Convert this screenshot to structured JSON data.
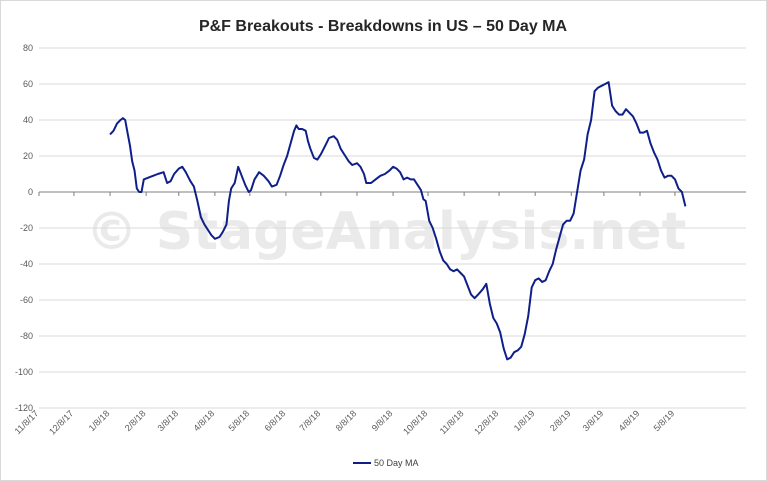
{
  "chart_data": {
    "type": "line",
    "title": "P&F Breakouts - Breakdowns in US – 50 Day MA",
    "watermark": "© StageAnalysis.net",
    "xlabel": "",
    "ylabel": "",
    "xlim": [
      "2017-11-08",
      "2019-07-08"
    ],
    "ylim": [
      -120,
      80
    ],
    "y_ticks": [
      80,
      60,
      40,
      20,
      0,
      -20,
      -40,
      -60,
      -80,
      -100,
      -120
    ],
    "x_ticks": [
      {
        "date": "2017-11-08",
        "label": "11/8/17"
      },
      {
        "date": "2017-12-08",
        "label": "12/8/17"
      },
      {
        "date": "2018-01-08",
        "label": "1/8/18"
      },
      {
        "date": "2018-02-08",
        "label": "2/8/18"
      },
      {
        "date": "2018-03-08",
        "label": "3/8/18"
      },
      {
        "date": "2018-04-08",
        "label": "4/8/18"
      },
      {
        "date": "2018-05-08",
        "label": "5/8/18"
      },
      {
        "date": "2018-06-08",
        "label": "6/8/18"
      },
      {
        "date": "2018-07-08",
        "label": "7/8/18"
      },
      {
        "date": "2018-08-08",
        "label": "8/8/18"
      },
      {
        "date": "2018-09-08",
        "label": "9/8/18"
      },
      {
        "date": "2018-10-08",
        "label": "10/8/18"
      },
      {
        "date": "2018-11-08",
        "label": "11/8/18"
      },
      {
        "date": "2018-12-08",
        "label": "12/8/18"
      },
      {
        "date": "2019-01-08",
        "label": "1/8/19"
      },
      {
        "date": "2019-02-08",
        "label": "2/8/19"
      },
      {
        "date": "2019-03-08",
        "label": "3/8/19"
      },
      {
        "date": "2019-04-08",
        "label": "4/8/19"
      },
      {
        "date": "2019-05-08",
        "label": "5/8/19"
      }
    ],
    "grid": {
      "horizontal": true,
      "vertical": false
    },
    "legend": "bottom",
    "series": [
      {
        "name": "50 Day MA",
        "color": "#0f1f8a",
        "points": [
          [
            "2018-01-08",
            32
          ],
          [
            "2018-01-11",
            34
          ],
          [
            "2018-01-14",
            38
          ],
          [
            "2018-01-17",
            40
          ],
          [
            "2018-01-19",
            41
          ],
          [
            "2018-01-21",
            40
          ],
          [
            "2018-01-23",
            33
          ],
          [
            "2018-01-25",
            26
          ],
          [
            "2018-01-27",
            17
          ],
          [
            "2018-01-29",
            12
          ],
          [
            "2018-01-31",
            2
          ],
          [
            "2018-02-02",
            0
          ],
          [
            "2018-02-04",
            0
          ],
          [
            "2018-02-06",
            7
          ],
          [
            "2018-02-10",
            8
          ],
          [
            "2018-02-14",
            9
          ],
          [
            "2018-02-18",
            10
          ],
          [
            "2018-02-23",
            11
          ],
          [
            "2018-02-26",
            5
          ],
          [
            "2018-03-01",
            6
          ],
          [
            "2018-03-04",
            10
          ],
          [
            "2018-03-08",
            13
          ],
          [
            "2018-03-11",
            14
          ],
          [
            "2018-03-14",
            11
          ],
          [
            "2018-03-18",
            6
          ],
          [
            "2018-03-21",
            3
          ],
          [
            "2018-03-24",
            -5
          ],
          [
            "2018-03-27",
            -14
          ],
          [
            "2018-03-30",
            -18
          ],
          [
            "2018-04-02",
            -21
          ],
          [
            "2018-04-05",
            -24
          ],
          [
            "2018-04-08",
            -26
          ],
          [
            "2018-04-12",
            -25
          ],
          [
            "2018-04-15",
            -22
          ],
          [
            "2018-04-18",
            -18
          ],
          [
            "2018-04-20",
            -5
          ],
          [
            "2018-04-22",
            2
          ],
          [
            "2018-04-25",
            5
          ],
          [
            "2018-04-28",
            14
          ],
          [
            "2018-05-01",
            9
          ],
          [
            "2018-05-04",
            4
          ],
          [
            "2018-05-07",
            0
          ],
          [
            "2018-05-09",
            1
          ],
          [
            "2018-05-12",
            7
          ],
          [
            "2018-05-16",
            11
          ],
          [
            "2018-05-20",
            9
          ],
          [
            "2018-05-24",
            6
          ],
          [
            "2018-05-27",
            3
          ],
          [
            "2018-05-31",
            4
          ],
          [
            "2018-06-03",
            9
          ],
          [
            "2018-06-06",
            15
          ],
          [
            "2018-06-09",
            20
          ],
          [
            "2018-06-12",
            27
          ],
          [
            "2018-06-15",
            34
          ],
          [
            "2018-06-17",
            37
          ],
          [
            "2018-06-19",
            35
          ],
          [
            "2018-06-22",
            35
          ],
          [
            "2018-06-25",
            34
          ],
          [
            "2018-06-27",
            28
          ],
          [
            "2018-06-29",
            24
          ],
          [
            "2018-07-02",
            19
          ],
          [
            "2018-07-05",
            18
          ],
          [
            "2018-07-08",
            21
          ],
          [
            "2018-07-12",
            26
          ],
          [
            "2018-07-15",
            30
          ],
          [
            "2018-07-19",
            31
          ],
          [
            "2018-07-22",
            29
          ],
          [
            "2018-07-25",
            24
          ],
          [
            "2018-07-29",
            20
          ],
          [
            "2018-08-01",
            17
          ],
          [
            "2018-08-04",
            15
          ],
          [
            "2018-08-08",
            16
          ],
          [
            "2018-08-11",
            14
          ],
          [
            "2018-08-14",
            10
          ],
          [
            "2018-08-16",
            5
          ],
          [
            "2018-08-20",
            5
          ],
          [
            "2018-08-24",
            7
          ],
          [
            "2018-08-28",
            9
          ],
          [
            "2018-09-01",
            10
          ],
          [
            "2018-09-05",
            12
          ],
          [
            "2018-09-08",
            14
          ],
          [
            "2018-09-11",
            13
          ],
          [
            "2018-09-14",
            11
          ],
          [
            "2018-09-17",
            7
          ],
          [
            "2018-09-20",
            8
          ],
          [
            "2018-09-23",
            7
          ],
          [
            "2018-09-26",
            7
          ],
          [
            "2018-09-29",
            4
          ],
          [
            "2018-10-02",
            1
          ],
          [
            "2018-10-04",
            -4
          ],
          [
            "2018-10-06",
            -5
          ],
          [
            "2018-10-09",
            -16
          ],
          [
            "2018-10-12",
            -20
          ],
          [
            "2018-10-15",
            -26
          ],
          [
            "2018-10-18",
            -33
          ],
          [
            "2018-10-21",
            -38
          ],
          [
            "2018-10-24",
            -40
          ],
          [
            "2018-10-27",
            -43
          ],
          [
            "2018-10-30",
            -44
          ],
          [
            "2018-11-02",
            -43
          ],
          [
            "2018-11-05",
            -45
          ],
          [
            "2018-11-08",
            -47
          ],
          [
            "2018-11-11",
            -52
          ],
          [
            "2018-11-14",
            -57
          ],
          [
            "2018-11-17",
            -59
          ],
          [
            "2018-11-20",
            -57
          ],
          [
            "2018-11-24",
            -54
          ],
          [
            "2018-11-27",
            -51
          ],
          [
            "2018-11-30",
            -62
          ],
          [
            "2018-12-03",
            -70
          ],
          [
            "2018-12-06",
            -73
          ],
          [
            "2018-12-09",
            -78
          ],
          [
            "2018-12-12",
            -87
          ],
          [
            "2018-12-15",
            -93
          ],
          [
            "2018-12-18",
            -92
          ],
          [
            "2018-12-21",
            -89
          ],
          [
            "2018-12-24",
            -88
          ],
          [
            "2018-12-27",
            -86
          ],
          [
            "2018-12-30",
            -79
          ],
          [
            "2019-01-02",
            -69
          ],
          [
            "2019-01-05",
            -53
          ],
          [
            "2019-01-08",
            -49
          ],
          [
            "2019-01-11",
            -48
          ],
          [
            "2019-01-14",
            -50
          ],
          [
            "2019-01-17",
            -49
          ],
          [
            "2019-01-20",
            -44
          ],
          [
            "2019-01-23",
            -40
          ],
          [
            "2019-01-26",
            -32
          ],
          [
            "2019-01-29",
            -25
          ],
          [
            "2019-02-01",
            -18
          ],
          [
            "2019-02-04",
            -16
          ],
          [
            "2019-02-07",
            -16
          ],
          [
            "2019-02-10",
            -12
          ],
          [
            "2019-02-13",
            0
          ],
          [
            "2019-02-16",
            12
          ],
          [
            "2019-02-19",
            18
          ],
          [
            "2019-02-22",
            32
          ],
          [
            "2019-02-25",
            40
          ],
          [
            "2019-02-28",
            56
          ],
          [
            "2019-03-03",
            58
          ],
          [
            "2019-03-06",
            59
          ],
          [
            "2019-03-09",
            60
          ],
          [
            "2019-03-12",
            61
          ],
          [
            "2019-03-15",
            48
          ],
          [
            "2019-03-18",
            45
          ],
          [
            "2019-03-21",
            43
          ],
          [
            "2019-03-24",
            43
          ],
          [
            "2019-03-27",
            46
          ],
          [
            "2019-03-30",
            44
          ],
          [
            "2019-04-02",
            42
          ],
          [
            "2019-04-05",
            38
          ],
          [
            "2019-04-08",
            33
          ],
          [
            "2019-04-11",
            33
          ],
          [
            "2019-04-14",
            34
          ],
          [
            "2019-04-17",
            27
          ],
          [
            "2019-04-20",
            22
          ],
          [
            "2019-04-23",
            18
          ],
          [
            "2019-04-26",
            12
          ],
          [
            "2019-04-29",
            8
          ],
          [
            "2019-05-02",
            9
          ],
          [
            "2019-05-05",
            9
          ],
          [
            "2019-05-08",
            7
          ],
          [
            "2019-05-11",
            2
          ],
          [
            "2019-05-14",
            0
          ],
          [
            "2019-05-17",
            -8
          ]
        ]
      }
    ]
  }
}
